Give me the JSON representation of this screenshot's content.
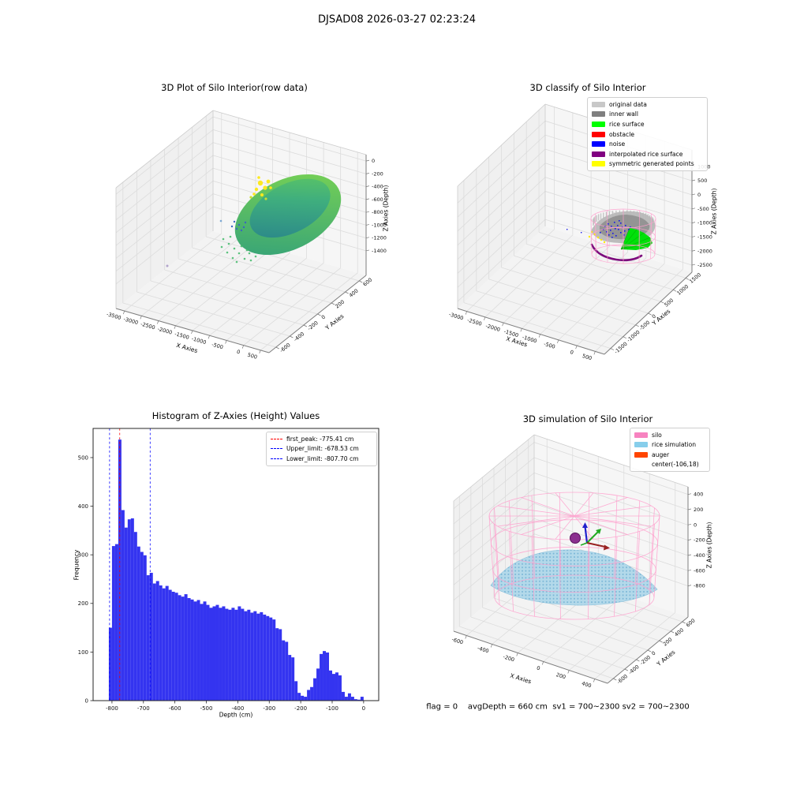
{
  "figure": {
    "suptitle": "DJSAD08 2026-03-27 02:23:24",
    "footer": "flag = 0    avgDepth = 660 cm  sv1 = 700~2300 sv2 = 700~2300"
  },
  "chart_data": [
    {
      "id": "raw",
      "type": "scatter",
      "projection": "3d",
      "title": "3D Plot of Silo Interior(row data)",
      "xlabel": "X Axies",
      "ylabel": "Y Axies",
      "zlabel": "Z Axies (Depth)",
      "xticks": [
        -3500,
        -3000,
        -2500,
        -2000,
        -1500,
        -1000,
        -500,
        0,
        500
      ],
      "yticks": [
        -600,
        -400,
        -200,
        0,
        200,
        400,
        600
      ],
      "zticks": [
        0,
        -200,
        -400,
        -600,
        -800,
        -1000,
        -1200,
        -1400
      ],
      "colormap": "viridis",
      "content": "tilted elliptical bowl-shaped point cloud in green/teal with yellow cluster near rim and sparse blue/green noise points"
    },
    {
      "id": "classify",
      "type": "scatter",
      "projection": "3d",
      "title": "3D classify of Silo Interior",
      "xlabel": "X Axies",
      "ylabel": "Y Axies",
      "zlabel": "Z Axies (Depth)",
      "xticks": [
        -3000,
        -2500,
        -2000,
        -1500,
        -1000,
        -500,
        0,
        500
      ],
      "yticks": [
        -1500,
        -1000,
        -500,
        0,
        500,
        1000,
        1500
      ],
      "zticks": [
        1000,
        500,
        0,
        -500,
        -1000,
        -1500,
        -2000,
        -2500
      ],
      "legend": [
        {
          "label": "original data",
          "color": "#c8c8c8"
        },
        {
          "label": "inner wall",
          "color": "#7f7f7f"
        },
        {
          "label": "rice surface",
          "color": "#00ff00"
        },
        {
          "label": "obstacle",
          "color": "#ff0000"
        },
        {
          "label": "noise",
          "color": "#0000ff"
        },
        {
          "label": "interpolated rice surface",
          "color": "#800080"
        },
        {
          "label": "symmetric generated points",
          "color": "#ffff00"
        }
      ],
      "content": "pink wireframe cylinder containing gray inner-wall point cloud, green rice surface wedge, blue noise cluster, yellow symmetric points and purple interpolated rim curve"
    },
    {
      "id": "hist",
      "type": "bar",
      "title": "Histogram of Z-Axies (Height) Values",
      "xlabel": "Depth (cm)",
      "ylabel": "Frequency",
      "bar_color": "#3434f0",
      "xlim": [
        -860,
        48
      ],
      "ylim": [
        0,
        560
      ],
      "xticks": [
        -800,
        -700,
        -600,
        -500,
        -400,
        -300,
        -200,
        -100,
        0
      ],
      "yticks": [
        0,
        100,
        200,
        300,
        400,
        500
      ],
      "bin_start": -810,
      "bin_width": 10,
      "values": [
        150,
        318,
        322,
        537,
        392,
        356,
        373,
        375,
        347,
        317,
        306,
        299,
        258,
        263,
        241,
        246,
        237,
        231,
        236,
        228,
        224,
        222,
        217,
        214,
        219,
        211,
        208,
        204,
        207,
        199,
        204,
        197,
        191,
        194,
        197,
        191,
        194,
        189,
        187,
        191,
        187,
        194,
        189,
        184,
        187,
        181,
        184,
        179,
        182,
        177,
        174,
        171,
        167,
        149,
        147,
        124,
        121,
        94,
        89,
        40,
        16,
        10,
        8,
        22,
        28,
        46,
        66,
        96,
        102,
        99,
        62,
        55,
        58,
        52,
        18,
        8,
        15,
        8,
        3,
        2,
        8
      ],
      "vlines": [
        {
          "label": "first_peak: -775.41 cm",
          "x": -775.41,
          "color": "#ff0000"
        },
        {
          "label": "Upper_limit: -678.53 cm",
          "x": -678.53,
          "color": "#0000ff"
        },
        {
          "label": "Lower_limit: -807.70 cm",
          "x": -807.7,
          "color": "#0000ff"
        }
      ]
    },
    {
      "id": "sim",
      "type": "scatter",
      "projection": "3d",
      "title": "3D simulation of Silo Interior",
      "xlabel": "X Axies",
      "ylabel": "Y Axies",
      "zlabel": "Z Axies (Depth)",
      "xticks": [
        -600,
        -400,
        -200,
        0,
        200,
        400
      ],
      "yticks": [
        -600,
        -400,
        -200,
        0,
        200,
        400,
        600
      ],
      "zticks": [
        400,
        200,
        0,
        -200,
        -400,
        -600,
        -800
      ],
      "legend": [
        {
          "label": "silo",
          "color": "#f783c0"
        },
        {
          "label": "rice simulation",
          "color": "#87ceeb"
        },
        {
          "label": "auger",
          "color": "#ff4500"
        },
        {
          "label": "center(-106,18)",
          "color": ""
        }
      ],
      "content": "large pink wireframe silo cylinder with light-blue simulated rice surface dome, purple auger sphere and RGB orientation arrows"
    }
  ]
}
